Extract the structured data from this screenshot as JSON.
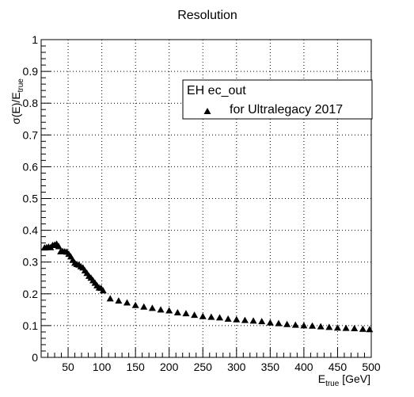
{
  "chart_data": {
    "type": "scatter",
    "title": "Resolution",
    "xlabel": {
      "main": "E",
      "sub": "true",
      "unit": " [GeV]"
    },
    "ylabel": {
      "main": "σ(E)/E",
      "sub": "true"
    },
    "xlim": [
      10,
      500
    ],
    "ylim": [
      0,
      1
    ],
    "grid": true,
    "x_ticks": [
      50,
      100,
      150,
      200,
      250,
      300,
      350,
      400,
      450,
      500
    ],
    "x_tick_labels": [
      "50",
      "100",
      "150",
      "200",
      "250",
      "300",
      "350",
      "400",
      "450",
      "500"
    ],
    "y_ticks": [
      0,
      0.1,
      0.2,
      0.3,
      0.4,
      0.5,
      0.6,
      0.7,
      0.8,
      0.9,
      1
    ],
    "y_tick_labels": [
      "0",
      "0.1",
      "0.2",
      "0.3",
      "0.4",
      "0.5",
      "0.6",
      "0.7",
      "0.8",
      "0.9",
      "1"
    ],
    "legend": {
      "placement": "top-right",
      "header": "EH ec_out",
      "entries": [
        "for Ultralegacy 2017"
      ]
    },
    "series": [
      {
        "name": "for Ultralegacy 2017",
        "marker": "triangle-up",
        "color": "#000000",
        "x": [
          15,
          18,
          21,
          24,
          27,
          30,
          33,
          36,
          39,
          42,
          45,
          48,
          51,
          54,
          57,
          60,
          63,
          66,
          69,
          72,
          75,
          78,
          81,
          84,
          87,
          90,
          93,
          96,
          99,
          102,
          112.5,
          125,
          137.5,
          150,
          162.5,
          175,
          187.5,
          200,
          212.5,
          225,
          237.5,
          250,
          262.5,
          275,
          287.5,
          300,
          312.5,
          325,
          337.5,
          350,
          362.5,
          375,
          387.5,
          400,
          412.5,
          425,
          437.5,
          450,
          462.5,
          475,
          487.5,
          497.5
        ],
        "y": [
          0.345,
          0.346,
          0.348,
          0.346,
          0.353,
          0.354,
          0.357,
          0.349,
          0.333,
          0.334,
          0.333,
          0.332,
          0.325,
          0.317,
          0.306,
          0.297,
          0.293,
          0.291,
          0.286,
          0.282,
          0.273,
          0.265,
          0.256,
          0.25,
          0.242,
          0.234,
          0.226,
          0.219,
          0.218,
          0.21,
          0.185,
          0.178,
          0.172,
          0.164,
          0.159,
          0.155,
          0.15,
          0.147,
          0.141,
          0.138,
          0.133,
          0.129,
          0.127,
          0.125,
          0.121,
          0.119,
          0.117,
          0.115,
          0.113,
          0.109,
          0.107,
          0.104,
          0.102,
          0.1,
          0.099,
          0.097,
          0.095,
          0.093,
          0.092,
          0.091,
          0.089,
          0.088
        ]
      }
    ]
  }
}
